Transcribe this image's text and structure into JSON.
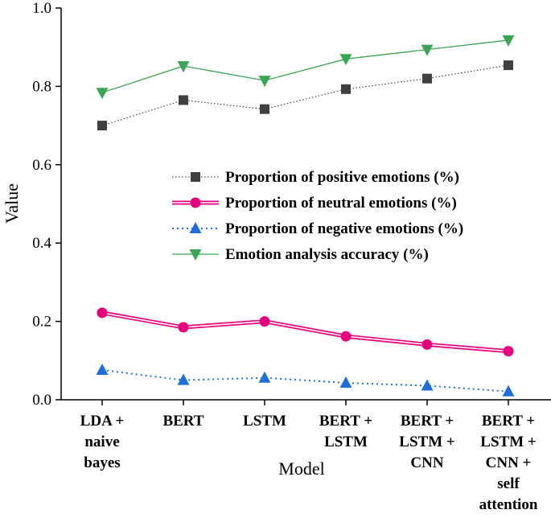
{
  "chart_data": {
    "type": "line",
    "title": "",
    "xlabel": "Model",
    "ylabel": "Value",
    "ylim": [
      0.0,
      1.0
    ],
    "yticks": [
      "0.0",
      "0.2",
      "0.4",
      "0.6",
      "0.8",
      "1.0"
    ],
    "categories": [
      [
        "LDA +",
        "naive",
        "bayes"
      ],
      [
        "BERT"
      ],
      [
        "LSTM"
      ],
      [
        "BERT +",
        "LSTM"
      ],
      [
        "BERT +",
        "LSTM +",
        "CNN"
      ],
      [
        "BERT +",
        "LSTM +",
        "CNN +",
        "self",
        "attention"
      ]
    ],
    "series": [
      {
        "name": "Proportion of positive emotions (%)",
        "marker": "square",
        "color": "#404040",
        "line": "dotted",
        "values": [
          0.7,
          0.765,
          0.742,
          0.793,
          0.82,
          0.854
        ]
      },
      {
        "name": "Proportion of neutral emotions (%)",
        "marker": "circle",
        "color": "#e6007e",
        "line": "double",
        "values": [
          0.222,
          0.185,
          0.2,
          0.162,
          0.141,
          0.124
        ]
      },
      {
        "name": "Proportion of negative emotions (%)",
        "marker": "triangle-up",
        "color": "#1f6fd8",
        "line": "dotted",
        "values": [
          0.076,
          0.05,
          0.056,
          0.043,
          0.036,
          0.021
        ]
      },
      {
        "name": "Emotion analysis accuracy (%)",
        "marker": "triangle-down",
        "color": "#3aa655",
        "line": "solid",
        "values": [
          0.784,
          0.852,
          0.815,
          0.87,
          0.894,
          0.918
        ]
      }
    ],
    "legend_position": "center-right"
  }
}
